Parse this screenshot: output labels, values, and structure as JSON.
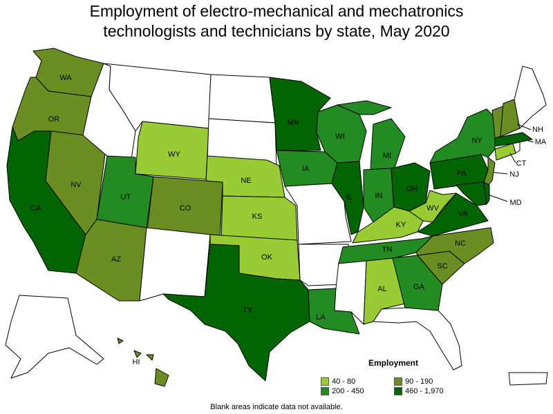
{
  "title_line1": "Employment of electro-mechanical and mechatronics",
  "title_line2": "technologists and technicians by state, May 2020",
  "legend": {
    "title": "Employment",
    "items": [
      {
        "label": "40 - 80",
        "color": "#99cc33"
      },
      {
        "label": "90 - 190",
        "color": "#6b8e23"
      },
      {
        "label": "200 - 450",
        "color": "#228b22"
      },
      {
        "label": "460 - 1,970",
        "color": "#006400"
      }
    ]
  },
  "footnote": "Blank areas indicate data not available.",
  "colors": {
    "c1": "#99cc33",
    "c2": "#6b8e23",
    "c3": "#228b22",
    "c4": "#006400",
    "none": "#ffffff"
  },
  "state_labels": {
    "WA": "WA",
    "OR": "OR",
    "CA": "CA",
    "NV": "NV",
    "AZ": "AZ",
    "UT": "UT",
    "CO": "CO",
    "WY": "WY",
    "NE": "NE",
    "KS": "KS",
    "OK": "OK",
    "TX": "TX",
    "MN": "MN",
    "IA": "IA",
    "WI": "WI",
    "IL": "IL",
    "MI": "MI",
    "IN": "IN",
    "OH": "OH",
    "KY": "KY",
    "TN": "TN",
    "AL": "AL",
    "GA": "GA",
    "LA": "LA",
    "SC": "SC",
    "NC": "NC",
    "VA": "VA",
    "WV": "WV",
    "PA": "PA",
    "NY": "NY",
    "NJ": "NJ",
    "MD": "MD",
    "CT": "CT",
    "NH": "NH",
    "MA": "MA",
    "HI": "HI"
  },
  "state_classes": {
    "WA": "c2",
    "OR": "c2",
    "CA": "c4",
    "NV": "c2",
    "AZ": "c2",
    "UT": "c3",
    "CO": "c2",
    "WY": "c1",
    "NE": "c1",
    "KS": "c1",
    "OK": "c1",
    "TX": "c4",
    "MN": "c4",
    "IA": "c3",
    "WI": "c3",
    "IL": "c4",
    "MI": "c3",
    "IN": "c3",
    "OH": "c4",
    "KY": "c1",
    "TN": "c3",
    "AL": "c1",
    "GA": "c3",
    "LA": "c3",
    "SC": "c2",
    "NC": "c2",
    "VA": "c4",
    "WV": "c1",
    "PA": "c4",
    "NY": "c3",
    "NJ": "c2",
    "MD": "c4",
    "DE": "c4",
    "CT": "c1",
    "NH": "c2",
    "MA": "c4",
    "VT": "c2",
    "HI": "c2",
    "ID": "none",
    "MT": "none",
    "ND": "none",
    "SD": "none",
    "NM": "none",
    "MO": "none",
    "AR": "none",
    "MS": "none",
    "FL": "none",
    "ME": "none",
    "RI": "none",
    "AK": "none",
    "PR": "none"
  }
}
